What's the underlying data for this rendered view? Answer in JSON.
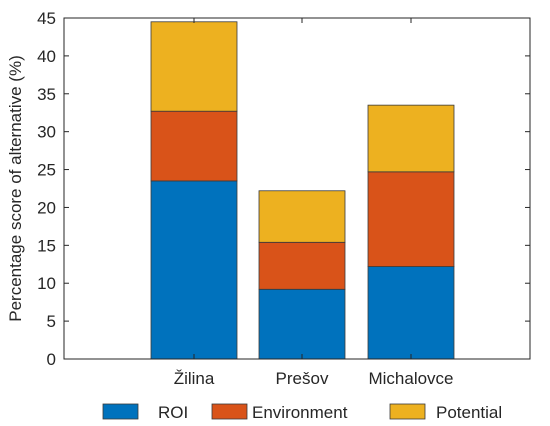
{
  "chart_data": {
    "type": "bar",
    "stacked": true,
    "title": "",
    "xlabel": "",
    "ylabel": "Percentage score of alternative (%)",
    "ylim": [
      0,
      45
    ],
    "yticks": [
      0,
      5,
      10,
      15,
      20,
      25,
      30,
      35,
      40,
      45
    ],
    "categories": [
      "Žilina",
      "Prešov",
      "Michalovce"
    ],
    "series": [
      {
        "name": "ROI",
        "color": "#0072BD",
        "values": [
          23.5,
          9.2,
          12.2
        ]
      },
      {
        "name": "Environment",
        "color": "#D95319",
        "values": [
          9.2,
          6.2,
          12.5
        ]
      },
      {
        "name": "Potential",
        "color": "#EDB120",
        "values": [
          11.8,
          6.8,
          8.8
        ]
      }
    ],
    "legend_position": "bottom",
    "grid": false
  }
}
